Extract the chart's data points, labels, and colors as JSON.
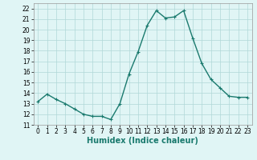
{
  "x": [
    0,
    1,
    2,
    3,
    4,
    5,
    6,
    7,
    8,
    9,
    10,
    11,
    12,
    13,
    14,
    15,
    16,
    17,
    18,
    19,
    20,
    21,
    22,
    23
  ],
  "y": [
    13.2,
    13.9,
    13.4,
    13.0,
    12.5,
    12.0,
    11.8,
    11.8,
    11.5,
    13.0,
    15.8,
    17.9,
    20.4,
    21.8,
    21.1,
    21.2,
    21.8,
    19.2,
    16.8,
    15.3,
    14.5,
    13.7,
    13.6,
    13.6
  ],
  "line_color": "#1a7a6e",
  "marker": "+",
  "marker_size": 3,
  "bg_color": "#e0f5f5",
  "grid_color": "#b0d8d8",
  "xlabel": "Humidex (Indice chaleur)",
  "ylim": [
    11,
    22.5
  ],
  "xlim": [
    -0.5,
    23.5
  ],
  "yticks": [
    11,
    12,
    13,
    14,
    15,
    16,
    17,
    18,
    19,
    20,
    21,
    22
  ],
  "xticks": [
    0,
    1,
    2,
    3,
    4,
    5,
    6,
    7,
    8,
    9,
    10,
    11,
    12,
    13,
    14,
    15,
    16,
    17,
    18,
    19,
    20,
    21,
    22,
    23
  ],
  "tick_fontsize": 5.5,
  "xlabel_fontsize": 7.0,
  "linewidth": 1.0,
  "markeredgewidth": 0.8
}
